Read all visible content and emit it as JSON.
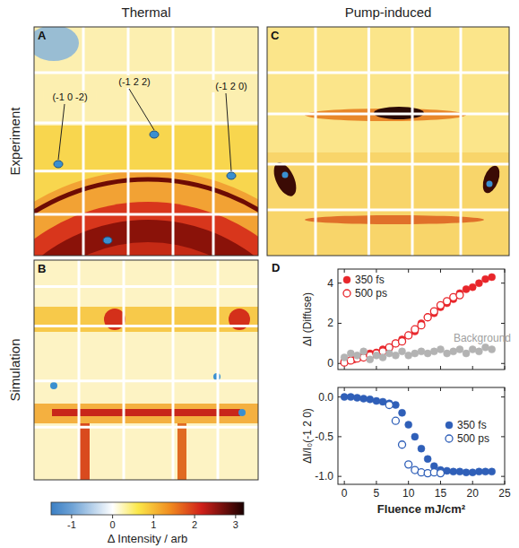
{
  "figure": {
    "columns": [
      "Thermal",
      "Pump-induced"
    ],
    "rows": [
      "Experiment",
      "Simulation"
    ],
    "panels": [
      {
        "letter": "A",
        "labels": [
          "(-1 0 -2)",
          "(-1 2 2)",
          "(-1 2 0)"
        ]
      },
      {
        "letter": "B"
      },
      {
        "letter": "C"
      },
      {
        "letter": "D"
      }
    ],
    "colorbar": {
      "label": "Δ Intensity / arb",
      "range": [
        -1.5,
        3.2
      ],
      "ticks": [
        -1,
        0,
        1,
        2,
        3
      ]
    }
  },
  "chart_data": [
    {
      "type": "scatter",
      "ylabel": "ΔI (Diffuse)",
      "xlim": [
        -1,
        25
      ],
      "ylim": [
        -0.3,
        4.7
      ],
      "xticks": [
        0,
        5,
        10,
        15,
        20,
        25
      ],
      "yticks": [
        0,
        2,
        4
      ],
      "tick_labels": "y",
      "legend": "upper left",
      "series": [
        {
          "name": "350 fs",
          "color": "#e8262b",
          "marker": "circle",
          "x": [
            0,
            0.8,
            1.5,
            2.3,
            3,
            4,
            5,
            6,
            7,
            8,
            9,
            10,
            11,
            12,
            13,
            14,
            15,
            16,
            17,
            18,
            19,
            20,
            21,
            22,
            23
          ],
          "values": [
            0.1,
            0.15,
            0.2,
            0.3,
            0.4,
            0.5,
            0.55,
            0.7,
            0.8,
            1.0,
            1.2,
            1.4,
            1.6,
            2.0,
            2.3,
            2.5,
            2.8,
            3.0,
            3.2,
            3.5,
            3.7,
            3.8,
            4.0,
            4.2,
            4.3
          ]
        },
        {
          "name": "500 ps",
          "color": "#e8262b",
          "marker": "circle-open",
          "x": [
            0,
            1,
            2,
            3,
            4,
            5,
            6,
            7,
            8,
            9,
            10,
            11,
            12,
            13,
            14,
            15,
            16,
            17,
            18
          ],
          "values": [
            0.05,
            0.15,
            0.25,
            0.3,
            0.4,
            0.5,
            0.6,
            0.8,
            1.0,
            1.1,
            1.4,
            1.7,
            1.9,
            2.3,
            2.6,
            2.9,
            3.1,
            3.3,
            3.4
          ]
        },
        {
          "color": "#b3b3b3",
          "marker": "circle",
          "x": [
            0,
            1,
            2,
            3,
            4,
            5,
            6,
            7,
            8,
            9,
            10,
            11,
            12,
            13,
            14,
            15,
            16,
            17,
            18,
            19,
            20,
            21,
            22,
            23
          ],
          "values": [
            0.3,
            0.5,
            0.4,
            0.6,
            0.2,
            0.4,
            0.3,
            0.5,
            0.4,
            0.6,
            0.4,
            0.5,
            0.6,
            0.5,
            0.6,
            0.7,
            0.5,
            0.6,
            0.7,
            0.5,
            0.7,
            0.6,
            0.8,
            0.7
          ]
        }
      ],
      "annotations": [
        {
          "text": "Background",
          "x": 21.5,
          "y": 1.1
        }
      ]
    },
    {
      "type": "scatter",
      "xlabel": "Fluence mJ/cm²",
      "ylabel": "ΔI/I₀(-1 2 0)",
      "xlim": [
        -1,
        25
      ],
      "ylim": [
        -1.1,
        0.12
      ],
      "xticks": [
        0,
        5,
        10,
        15,
        20,
        25
      ],
      "yticks": [
        {
          "value": -1,
          "label": "-1.0"
        },
        {
          "value": -0.5,
          "label": "-0.5"
        },
        {
          "value": 0,
          "label": "0.0"
        }
      ],
      "legend": "right",
      "series": [
        {
          "name": "350 fs",
          "color": "#2f5fb8",
          "marker": "circle",
          "x": [
            0,
            1,
            2,
            3,
            4,
            5,
            6,
            7,
            8,
            9,
            10,
            11,
            12,
            13,
            14,
            15,
            16,
            17,
            18,
            19,
            20,
            21,
            22,
            23
          ],
          "values": [
            0,
            0,
            -0.01,
            -0.02,
            -0.03,
            -0.05,
            -0.06,
            -0.08,
            -0.1,
            -0.2,
            -0.35,
            -0.5,
            -0.65,
            -0.78,
            -0.87,
            -0.92,
            -0.93,
            -0.94,
            -0.94,
            -0.95,
            -0.95,
            -0.94,
            -0.94,
            -0.94
          ]
        },
        {
          "name": "500 ps",
          "color": "#2f5fb8",
          "marker": "circle-open",
          "x": [
            7,
            8,
            9,
            10,
            11,
            12,
            13,
            14,
            15
          ],
          "values": [
            -0.1,
            -0.3,
            -0.6,
            -0.85,
            -0.92,
            -0.95,
            -0.96,
            -0.95,
            -0.96
          ]
        }
      ]
    }
  ]
}
